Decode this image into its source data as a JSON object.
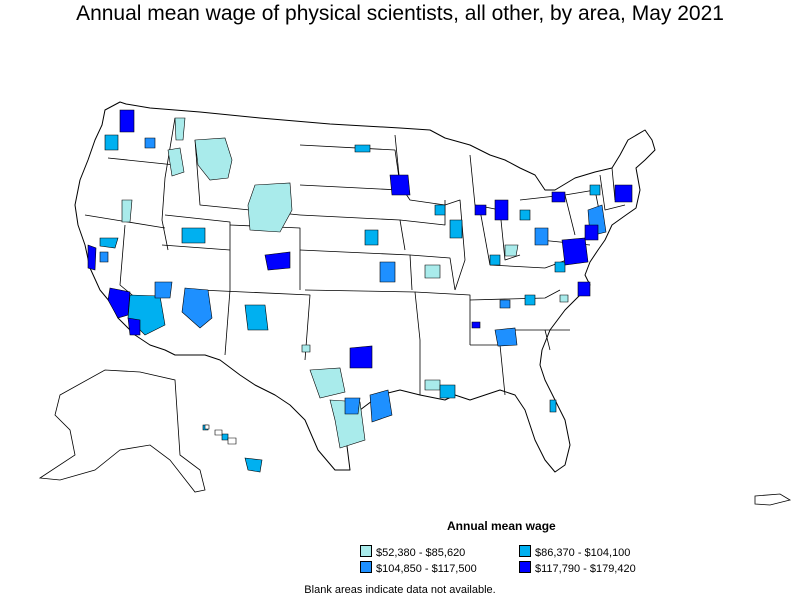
{
  "title": "Annual mean wage of physical scientists, all other, by area, May 2021",
  "legend": {
    "title": "Annual mean wage",
    "items": [
      {
        "label": "$52,380 - $85,620",
        "color": "#a9ebeb"
      },
      {
        "label": "$86,370 - $104,100",
        "color": "#00b0f0"
      },
      {
        "label": "$104,850 - $117,500",
        "color": "#1e90ff"
      },
      {
        "label": "$117,790 - $179,420",
        "color": "#0000ff"
      }
    ]
  },
  "footnote": "Blank areas indicate data not available.",
  "colors": {
    "background": "#ffffff",
    "boundary": "#000000",
    "no_data": "#ffffff"
  }
}
